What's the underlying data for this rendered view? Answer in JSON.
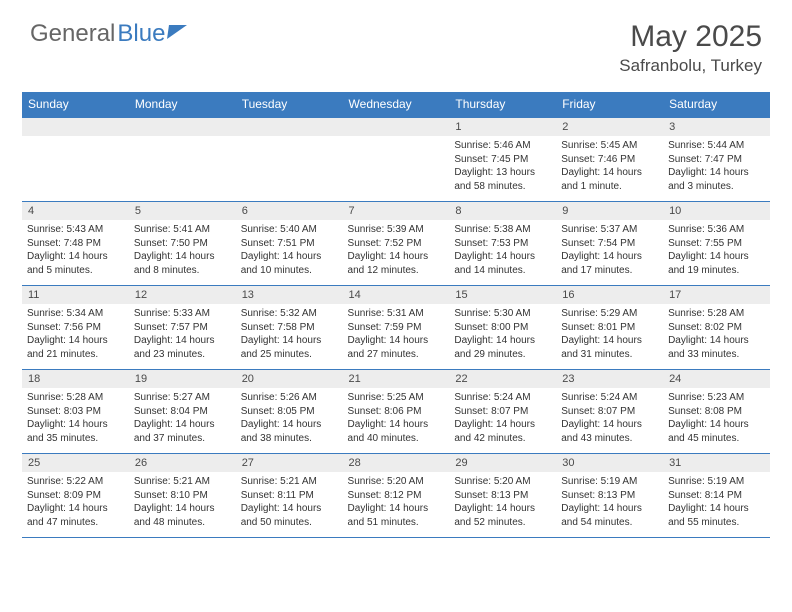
{
  "brand": {
    "part1": "General",
    "part2": "Blue"
  },
  "title": "May 2025",
  "location": "Safranbolu, Turkey",
  "colors": {
    "header_bg": "#3b7bbf",
    "header_text": "#ffffff",
    "daynum_bg": "#ededed",
    "border": "#3b7bbf",
    "body_text": "#333333",
    "title_text": "#4a4a4a",
    "page_bg": "#ffffff"
  },
  "fonts": {
    "title_size_pt": 30,
    "location_size_pt": 17,
    "header_cell_size_pt": 12,
    "daynum_size_pt": 11,
    "body_size_pt": 10
  },
  "weekdays": [
    "Sunday",
    "Monday",
    "Tuesday",
    "Wednesday",
    "Thursday",
    "Friday",
    "Saturday"
  ],
  "weeks": [
    [
      null,
      null,
      null,
      null,
      {
        "n": "1",
        "sr": "Sunrise: 5:46 AM",
        "ss": "Sunset: 7:45 PM",
        "dl1": "Daylight: 13 hours",
        "dl2": "and 58 minutes."
      },
      {
        "n": "2",
        "sr": "Sunrise: 5:45 AM",
        "ss": "Sunset: 7:46 PM",
        "dl1": "Daylight: 14 hours",
        "dl2": "and 1 minute."
      },
      {
        "n": "3",
        "sr": "Sunrise: 5:44 AM",
        "ss": "Sunset: 7:47 PM",
        "dl1": "Daylight: 14 hours",
        "dl2": "and 3 minutes."
      }
    ],
    [
      {
        "n": "4",
        "sr": "Sunrise: 5:43 AM",
        "ss": "Sunset: 7:48 PM",
        "dl1": "Daylight: 14 hours",
        "dl2": "and 5 minutes."
      },
      {
        "n": "5",
        "sr": "Sunrise: 5:41 AM",
        "ss": "Sunset: 7:50 PM",
        "dl1": "Daylight: 14 hours",
        "dl2": "and 8 minutes."
      },
      {
        "n": "6",
        "sr": "Sunrise: 5:40 AM",
        "ss": "Sunset: 7:51 PM",
        "dl1": "Daylight: 14 hours",
        "dl2": "and 10 minutes."
      },
      {
        "n": "7",
        "sr": "Sunrise: 5:39 AM",
        "ss": "Sunset: 7:52 PM",
        "dl1": "Daylight: 14 hours",
        "dl2": "and 12 minutes."
      },
      {
        "n": "8",
        "sr": "Sunrise: 5:38 AM",
        "ss": "Sunset: 7:53 PM",
        "dl1": "Daylight: 14 hours",
        "dl2": "and 14 minutes."
      },
      {
        "n": "9",
        "sr": "Sunrise: 5:37 AM",
        "ss": "Sunset: 7:54 PM",
        "dl1": "Daylight: 14 hours",
        "dl2": "and 17 minutes."
      },
      {
        "n": "10",
        "sr": "Sunrise: 5:36 AM",
        "ss": "Sunset: 7:55 PM",
        "dl1": "Daylight: 14 hours",
        "dl2": "and 19 minutes."
      }
    ],
    [
      {
        "n": "11",
        "sr": "Sunrise: 5:34 AM",
        "ss": "Sunset: 7:56 PM",
        "dl1": "Daylight: 14 hours",
        "dl2": "and 21 minutes."
      },
      {
        "n": "12",
        "sr": "Sunrise: 5:33 AM",
        "ss": "Sunset: 7:57 PM",
        "dl1": "Daylight: 14 hours",
        "dl2": "and 23 minutes."
      },
      {
        "n": "13",
        "sr": "Sunrise: 5:32 AM",
        "ss": "Sunset: 7:58 PM",
        "dl1": "Daylight: 14 hours",
        "dl2": "and 25 minutes."
      },
      {
        "n": "14",
        "sr": "Sunrise: 5:31 AM",
        "ss": "Sunset: 7:59 PM",
        "dl1": "Daylight: 14 hours",
        "dl2": "and 27 minutes."
      },
      {
        "n": "15",
        "sr": "Sunrise: 5:30 AM",
        "ss": "Sunset: 8:00 PM",
        "dl1": "Daylight: 14 hours",
        "dl2": "and 29 minutes."
      },
      {
        "n": "16",
        "sr": "Sunrise: 5:29 AM",
        "ss": "Sunset: 8:01 PM",
        "dl1": "Daylight: 14 hours",
        "dl2": "and 31 minutes."
      },
      {
        "n": "17",
        "sr": "Sunrise: 5:28 AM",
        "ss": "Sunset: 8:02 PM",
        "dl1": "Daylight: 14 hours",
        "dl2": "and 33 minutes."
      }
    ],
    [
      {
        "n": "18",
        "sr": "Sunrise: 5:28 AM",
        "ss": "Sunset: 8:03 PM",
        "dl1": "Daylight: 14 hours",
        "dl2": "and 35 minutes."
      },
      {
        "n": "19",
        "sr": "Sunrise: 5:27 AM",
        "ss": "Sunset: 8:04 PM",
        "dl1": "Daylight: 14 hours",
        "dl2": "and 37 minutes."
      },
      {
        "n": "20",
        "sr": "Sunrise: 5:26 AM",
        "ss": "Sunset: 8:05 PM",
        "dl1": "Daylight: 14 hours",
        "dl2": "and 38 minutes."
      },
      {
        "n": "21",
        "sr": "Sunrise: 5:25 AM",
        "ss": "Sunset: 8:06 PM",
        "dl1": "Daylight: 14 hours",
        "dl2": "and 40 minutes."
      },
      {
        "n": "22",
        "sr": "Sunrise: 5:24 AM",
        "ss": "Sunset: 8:07 PM",
        "dl1": "Daylight: 14 hours",
        "dl2": "and 42 minutes."
      },
      {
        "n": "23",
        "sr": "Sunrise: 5:24 AM",
        "ss": "Sunset: 8:07 PM",
        "dl1": "Daylight: 14 hours",
        "dl2": "and 43 minutes."
      },
      {
        "n": "24",
        "sr": "Sunrise: 5:23 AM",
        "ss": "Sunset: 8:08 PM",
        "dl1": "Daylight: 14 hours",
        "dl2": "and 45 minutes."
      }
    ],
    [
      {
        "n": "25",
        "sr": "Sunrise: 5:22 AM",
        "ss": "Sunset: 8:09 PM",
        "dl1": "Daylight: 14 hours",
        "dl2": "and 47 minutes."
      },
      {
        "n": "26",
        "sr": "Sunrise: 5:21 AM",
        "ss": "Sunset: 8:10 PM",
        "dl1": "Daylight: 14 hours",
        "dl2": "and 48 minutes."
      },
      {
        "n": "27",
        "sr": "Sunrise: 5:21 AM",
        "ss": "Sunset: 8:11 PM",
        "dl1": "Daylight: 14 hours",
        "dl2": "and 50 minutes."
      },
      {
        "n": "28",
        "sr": "Sunrise: 5:20 AM",
        "ss": "Sunset: 8:12 PM",
        "dl1": "Daylight: 14 hours",
        "dl2": "and 51 minutes."
      },
      {
        "n": "29",
        "sr": "Sunrise: 5:20 AM",
        "ss": "Sunset: 8:13 PM",
        "dl1": "Daylight: 14 hours",
        "dl2": "and 52 minutes."
      },
      {
        "n": "30",
        "sr": "Sunrise: 5:19 AM",
        "ss": "Sunset: 8:13 PM",
        "dl1": "Daylight: 14 hours",
        "dl2": "and 54 minutes."
      },
      {
        "n": "31",
        "sr": "Sunrise: 5:19 AM",
        "ss": "Sunset: 8:14 PM",
        "dl1": "Daylight: 14 hours",
        "dl2": "and 55 minutes."
      }
    ]
  ]
}
